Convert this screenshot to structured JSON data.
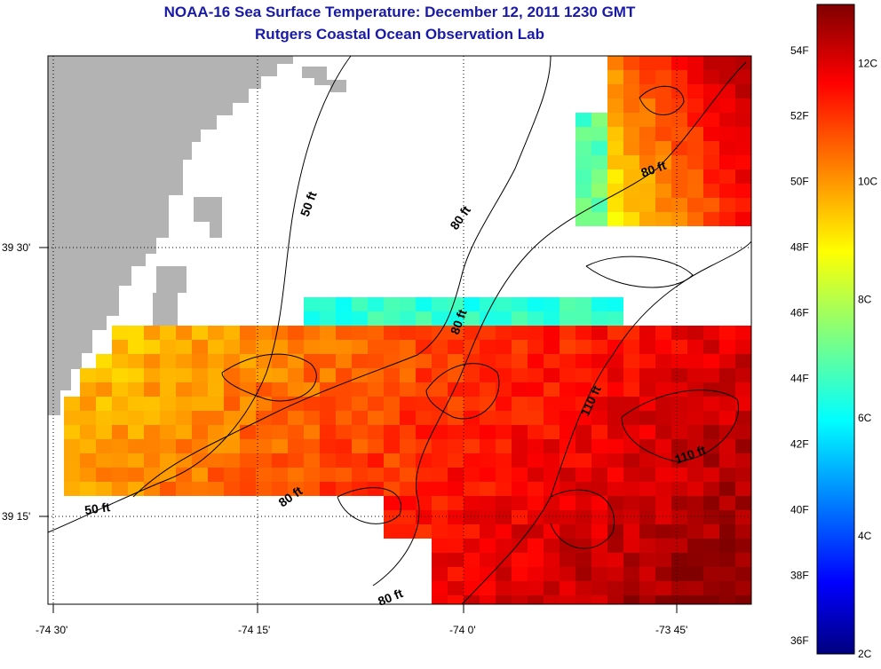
{
  "header": {
    "title": "NOAA-16 Sea Surface Temperature:  December 12, 2011 1230 GMT",
    "subtitle": "Rutgers Coastal Ocean Observation Lab"
  },
  "map": {
    "lon_ticks": [
      "-74 30'",
      "-74 15'",
      "-74 0'",
      "-73 45'"
    ],
    "lat_ticks": [
      "39 30'",
      "39 15'"
    ],
    "contour_labels": [
      "50 ft",
      "80 ft",
      "80 ft",
      "80 ft",
      "110 ft",
      "110 ft",
      "50 ft",
      "80 ft",
      "80 ft"
    ],
    "land_color": "#b3b3b3",
    "nodata_color": "#ffffff"
  },
  "colorbar": {
    "colormap": "jet",
    "range_c": [
      2,
      13
    ],
    "fahrenheit_labels": [
      "54F",
      "52F",
      "50F",
      "48F",
      "46F",
      "44F",
      "42F",
      "40F",
      "38F",
      "36F"
    ],
    "celsius_labels": [
      "12C",
      "10C",
      "8C",
      "6C",
      "4C",
      "2C"
    ]
  }
}
